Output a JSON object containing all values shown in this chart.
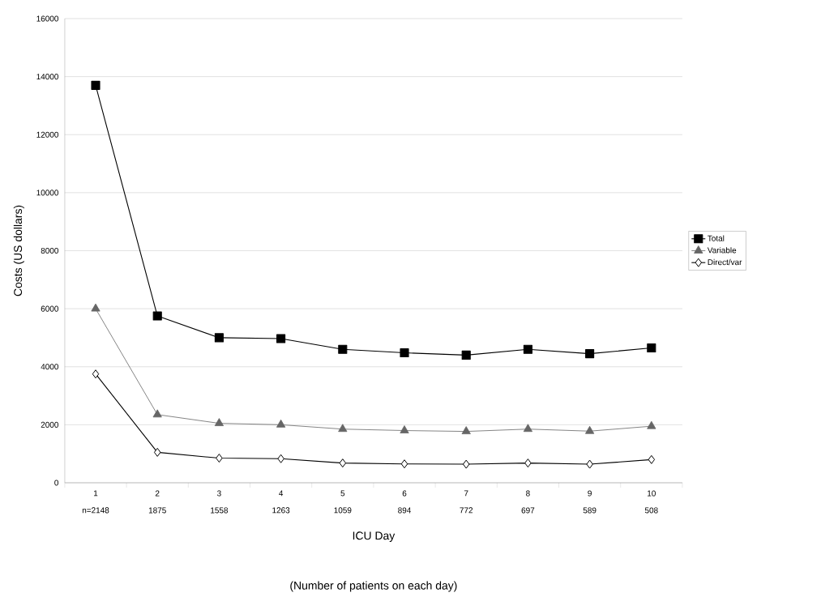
{
  "chart_data": {
    "type": "line",
    "xlabel": "ICU Day",
    "ylabel": "Costs (US dollars)",
    "categories": [
      "1",
      "2",
      "3",
      "4",
      "5",
      "6",
      "7",
      "8",
      "9",
      "10"
    ],
    "series": [
      {
        "name": "Total",
        "color": "#000000",
        "marker": "square",
        "values": [
          13700,
          5750,
          5000,
          4970,
          4600,
          4480,
          4400,
          4600,
          4450,
          4650
        ]
      },
      {
        "name": "Variable",
        "color": "#666666",
        "marker": "triangle",
        "values": [
          6000,
          2350,
          2050,
          2000,
          1850,
          1800,
          1770,
          1850,
          1780,
          1950
        ]
      },
      {
        "name": "Direct/var",
        "color": "#000000",
        "marker": "diamond",
        "values": [
          3750,
          1050,
          850,
          830,
          680,
          650,
          640,
          680,
          640,
          800
        ]
      }
    ],
    "ylim": [
      0,
      16000
    ],
    "yticks": [
      0,
      2000,
      4000,
      6000,
      8000,
      10000,
      12000,
      14000,
      16000
    ],
    "grid": "y",
    "legend": "right",
    "line_style": "solid",
    "annotations": [
      "n=2148",
      "1875",
      "1558",
      "1263",
      "1059",
      "894",
      "772",
      "697",
      "589",
      "508",
      "(Number of patients on each day)"
    ]
  }
}
